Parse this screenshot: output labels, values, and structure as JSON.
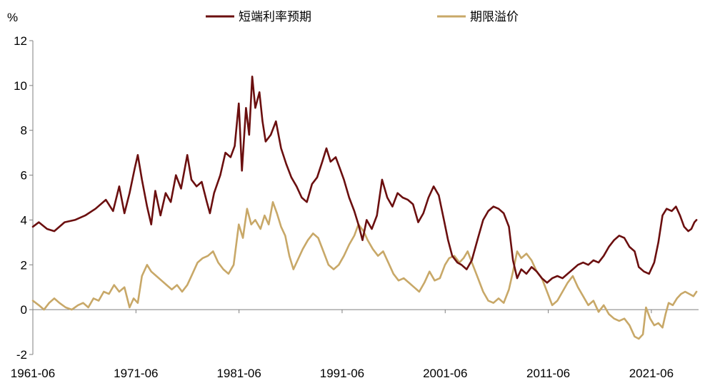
{
  "chart_data": {
    "type": "line",
    "title": "",
    "xlabel": "",
    "ylabel": "%",
    "ylim": [
      -2,
      12
    ],
    "yticks": [
      -2,
      0,
      2,
      4,
      6,
      8,
      10,
      12
    ],
    "xlim": [
      1961.42,
      2026.0
    ],
    "xticks": [
      {
        "label": "1961-06",
        "value": 1961.42
      },
      {
        "label": "1971-06",
        "value": 1971.42
      },
      {
        "label": "1981-06",
        "value": 1981.42
      },
      {
        "label": "1991-06",
        "value": 1991.42
      },
      {
        "label": "2001-06",
        "value": 2001.42
      },
      {
        "label": "2011-06",
        "value": 2011.42
      },
      {
        "label": "2021-06",
        "value": 2021.42
      }
    ],
    "grid": false,
    "legend": "top-center",
    "series": [
      {
        "name": "短端利率预期",
        "color": "#6b0f0f",
        "points": [
          [
            1961.42,
            3.7
          ],
          [
            1962.0,
            3.9
          ],
          [
            1962.8,
            3.6
          ],
          [
            1963.5,
            3.5
          ],
          [
            1964.5,
            3.9
          ],
          [
            1965.5,
            4.0
          ],
          [
            1966.5,
            4.2
          ],
          [
            1967.5,
            4.5
          ],
          [
            1968.5,
            4.9
          ],
          [
            1969.2,
            4.4
          ],
          [
            1969.8,
            5.5
          ],
          [
            1970.3,
            4.3
          ],
          [
            1970.8,
            5.2
          ],
          [
            1971.3,
            6.3
          ],
          [
            1971.6,
            6.9
          ],
          [
            1972.0,
            5.8
          ],
          [
            1972.5,
            4.6
          ],
          [
            1972.9,
            3.8
          ],
          [
            1973.3,
            5.3
          ],
          [
            1973.8,
            4.2
          ],
          [
            1974.3,
            5.2
          ],
          [
            1974.8,
            4.8
          ],
          [
            1975.3,
            6.0
          ],
          [
            1975.8,
            5.4
          ],
          [
            1976.4,
            6.9
          ],
          [
            1976.8,
            5.8
          ],
          [
            1977.3,
            5.5
          ],
          [
            1977.8,
            5.7
          ],
          [
            1978.3,
            4.8
          ],
          [
            1978.6,
            4.3
          ],
          [
            1979.0,
            5.2
          ],
          [
            1979.6,
            6.0
          ],
          [
            1980.1,
            7.0
          ],
          [
            1980.6,
            6.8
          ],
          [
            1981.0,
            7.3
          ],
          [
            1981.4,
            9.2
          ],
          [
            1981.7,
            6.2
          ],
          [
            1982.1,
            9.0
          ],
          [
            1982.4,
            7.8
          ],
          [
            1982.7,
            10.4
          ],
          [
            1983.0,
            9.0
          ],
          [
            1983.4,
            9.7
          ],
          [
            1983.7,
            8.4
          ],
          [
            1984.0,
            7.5
          ],
          [
            1984.5,
            7.8
          ],
          [
            1985.0,
            8.4
          ],
          [
            1985.5,
            7.2
          ],
          [
            1986.0,
            6.5
          ],
          [
            1986.5,
            5.9
          ],
          [
            1987.0,
            5.5
          ],
          [
            1987.5,
            5.0
          ],
          [
            1988.0,
            4.8
          ],
          [
            1988.5,
            5.6
          ],
          [
            1989.0,
            5.9
          ],
          [
            1989.5,
            6.6
          ],
          [
            1989.9,
            7.2
          ],
          [
            1990.3,
            6.6
          ],
          [
            1990.8,
            6.8
          ],
          [
            1991.2,
            6.3
          ],
          [
            1991.6,
            5.8
          ],
          [
            1992.1,
            5.0
          ],
          [
            1992.6,
            4.4
          ],
          [
            1993.0,
            3.8
          ],
          [
            1993.4,
            3.1
          ],
          [
            1993.8,
            4.0
          ],
          [
            1994.3,
            3.6
          ],
          [
            1994.8,
            4.2
          ],
          [
            1995.3,
            5.8
          ],
          [
            1995.8,
            5.0
          ],
          [
            1996.3,
            4.6
          ],
          [
            1996.8,
            5.2
          ],
          [
            1997.3,
            5.0
          ],
          [
            1997.8,
            4.9
          ],
          [
            1998.3,
            4.7
          ],
          [
            1998.8,
            3.9
          ],
          [
            1999.3,
            4.3
          ],
          [
            1999.8,
            5.0
          ],
          [
            2000.3,
            5.5
          ],
          [
            2000.8,
            5.1
          ],
          [
            2001.3,
            4.0
          ],
          [
            2001.7,
            3.1
          ],
          [
            2002.1,
            2.4
          ],
          [
            2002.6,
            2.1
          ],
          [
            2003.0,
            2.0
          ],
          [
            2003.5,
            1.8
          ],
          [
            2004.0,
            2.2
          ],
          [
            2004.6,
            3.2
          ],
          [
            2005.1,
            4.0
          ],
          [
            2005.6,
            4.4
          ],
          [
            2006.1,
            4.6
          ],
          [
            2006.6,
            4.5
          ],
          [
            2007.1,
            4.3
          ],
          [
            2007.6,
            3.7
          ],
          [
            2008.0,
            2.2
          ],
          [
            2008.4,
            1.4
          ],
          [
            2008.8,
            1.8
          ],
          [
            2009.3,
            1.6
          ],
          [
            2009.8,
            1.9
          ],
          [
            2010.3,
            1.7
          ],
          [
            2010.8,
            1.4
          ],
          [
            2011.3,
            1.2
          ],
          [
            2011.8,
            1.4
          ],
          [
            2012.3,
            1.5
          ],
          [
            2012.8,
            1.4
          ],
          [
            2013.3,
            1.6
          ],
          [
            2013.8,
            1.8
          ],
          [
            2014.3,
            2.0
          ],
          [
            2014.8,
            2.1
          ],
          [
            2015.3,
            2.0
          ],
          [
            2015.8,
            2.2
          ],
          [
            2016.3,
            2.1
          ],
          [
            2016.8,
            2.4
          ],
          [
            2017.3,
            2.8
          ],
          [
            2017.8,
            3.1
          ],
          [
            2018.3,
            3.3
          ],
          [
            2018.8,
            3.2
          ],
          [
            2019.3,
            2.8
          ],
          [
            2019.8,
            2.6
          ],
          [
            2020.2,
            1.9
          ],
          [
            2020.7,
            1.7
          ],
          [
            2021.2,
            1.6
          ],
          [
            2021.7,
            2.1
          ],
          [
            2022.1,
            3.0
          ],
          [
            2022.5,
            4.2
          ],
          [
            2022.9,
            4.5
          ],
          [
            2023.4,
            4.4
          ],
          [
            2023.8,
            4.6
          ],
          [
            2024.2,
            4.2
          ],
          [
            2024.6,
            3.7
          ],
          [
            2025.0,
            3.5
          ],
          [
            2025.3,
            3.6
          ],
          [
            2025.6,
            3.9
          ],
          [
            2025.8,
            4.0
          ]
        ]
      },
      {
        "name": "期限溢价",
        "color": "#c8a868",
        "points": [
          [
            1961.42,
            0.4
          ],
          [
            1962.0,
            0.2
          ],
          [
            1962.5,
            0.0
          ],
          [
            1963.0,
            0.3
          ],
          [
            1963.5,
            0.5
          ],
          [
            1964.0,
            0.3
          ],
          [
            1964.6,
            0.1
          ],
          [
            1965.2,
            0.0
          ],
          [
            1965.8,
            0.2
          ],
          [
            1966.3,
            0.3
          ],
          [
            1966.8,
            0.1
          ],
          [
            1967.3,
            0.5
          ],
          [
            1967.8,
            0.4
          ],
          [
            1968.3,
            0.8
          ],
          [
            1968.8,
            0.7
          ],
          [
            1969.3,
            1.1
          ],
          [
            1969.8,
            0.8
          ],
          [
            1970.3,
            1.0
          ],
          [
            1970.8,
            0.1
          ],
          [
            1971.2,
            0.5
          ],
          [
            1971.6,
            0.3
          ],
          [
            1972.0,
            1.5
          ],
          [
            1972.5,
            2.0
          ],
          [
            1972.9,
            1.7
          ],
          [
            1973.4,
            1.5
          ],
          [
            1973.9,
            1.3
          ],
          [
            1974.4,
            1.1
          ],
          [
            1974.9,
            0.9
          ],
          [
            1975.4,
            1.1
          ],
          [
            1975.9,
            0.8
          ],
          [
            1976.4,
            1.1
          ],
          [
            1976.9,
            1.6
          ],
          [
            1977.4,
            2.1
          ],
          [
            1977.9,
            2.3
          ],
          [
            1978.4,
            2.4
          ],
          [
            1978.9,
            2.6
          ],
          [
            1979.4,
            2.1
          ],
          [
            1979.9,
            1.8
          ],
          [
            1980.4,
            1.6
          ],
          [
            1980.9,
            2.0
          ],
          [
            1981.4,
            3.8
          ],
          [
            1981.8,
            3.2
          ],
          [
            1982.2,
            4.5
          ],
          [
            1982.6,
            3.8
          ],
          [
            1983.0,
            4.0
          ],
          [
            1983.5,
            3.6
          ],
          [
            1983.9,
            4.2
          ],
          [
            1984.3,
            3.8
          ],
          [
            1984.7,
            4.8
          ],
          [
            1985.1,
            4.3
          ],
          [
            1985.5,
            3.7
          ],
          [
            1985.9,
            3.3
          ],
          [
            1986.3,
            2.4
          ],
          [
            1986.7,
            1.8
          ],
          [
            1987.1,
            2.2
          ],
          [
            1987.6,
            2.7
          ],
          [
            1988.1,
            3.1
          ],
          [
            1988.6,
            3.4
          ],
          [
            1989.1,
            3.2
          ],
          [
            1989.6,
            2.6
          ],
          [
            1990.1,
            2.0
          ],
          [
            1990.6,
            1.8
          ],
          [
            1991.1,
            2.0
          ],
          [
            1991.6,
            2.4
          ],
          [
            1992.1,
            2.9
          ],
          [
            1992.6,
            3.3
          ],
          [
            1993.0,
            3.8
          ],
          [
            1993.5,
            3.5
          ],
          [
            1993.9,
            3.1
          ],
          [
            1994.4,
            2.7
          ],
          [
            1994.9,
            2.4
          ],
          [
            1995.4,
            2.6
          ],
          [
            1995.9,
            2.1
          ],
          [
            1996.4,
            1.6
          ],
          [
            1996.9,
            1.3
          ],
          [
            1997.4,
            1.4
          ],
          [
            1997.9,
            1.2
          ],
          [
            1998.4,
            1.0
          ],
          [
            1998.9,
            0.8
          ],
          [
            1999.4,
            1.2
          ],
          [
            1999.9,
            1.7
          ],
          [
            2000.4,
            1.3
          ],
          [
            2000.9,
            1.4
          ],
          [
            2001.4,
            2.0
          ],
          [
            2001.8,
            2.3
          ],
          [
            2002.3,
            2.4
          ],
          [
            2002.8,
            2.1
          ],
          [
            2003.2,
            2.3
          ],
          [
            2003.6,
            2.6
          ],
          [
            2004.1,
            2.0
          ],
          [
            2004.6,
            1.4
          ],
          [
            2005.1,
            0.8
          ],
          [
            2005.6,
            0.4
          ],
          [
            2006.1,
            0.3
          ],
          [
            2006.6,
            0.5
          ],
          [
            2007.1,
            0.3
          ],
          [
            2007.6,
            0.9
          ],
          [
            2008.0,
            1.7
          ],
          [
            2008.4,
            2.6
          ],
          [
            2008.8,
            2.3
          ],
          [
            2009.3,
            2.5
          ],
          [
            2009.8,
            2.2
          ],
          [
            2010.3,
            1.7
          ],
          [
            2010.8,
            1.4
          ],
          [
            2011.3,
            0.8
          ],
          [
            2011.8,
            0.2
          ],
          [
            2012.3,
            0.4
          ],
          [
            2012.8,
            0.8
          ],
          [
            2013.3,
            1.2
          ],
          [
            2013.8,
            1.5
          ],
          [
            2014.3,
            1.0
          ],
          [
            2014.8,
            0.6
          ],
          [
            2015.3,
            0.2
          ],
          [
            2015.8,
            0.4
          ],
          [
            2016.3,
            -0.1
          ],
          [
            2016.8,
            0.2
          ],
          [
            2017.3,
            -0.2
          ],
          [
            2017.8,
            -0.4
          ],
          [
            2018.3,
            -0.5
          ],
          [
            2018.8,
            -0.4
          ],
          [
            2019.3,
            -0.7
          ],
          [
            2019.8,
            -1.2
          ],
          [
            2020.2,
            -1.3
          ],
          [
            2020.6,
            -1.1
          ],
          [
            2020.9,
            0.1
          ],
          [
            2021.3,
            -0.4
          ],
          [
            2021.7,
            -0.7
          ],
          [
            2022.1,
            -0.6
          ],
          [
            2022.5,
            -0.8
          ],
          [
            2022.8,
            -0.2
          ],
          [
            2023.1,
            0.3
          ],
          [
            2023.5,
            0.2
          ],
          [
            2023.9,
            0.5
          ],
          [
            2024.3,
            0.7
          ],
          [
            2024.7,
            0.8
          ],
          [
            2025.1,
            0.7
          ],
          [
            2025.5,
            0.6
          ],
          [
            2025.8,
            0.8
          ]
        ]
      }
    ]
  }
}
